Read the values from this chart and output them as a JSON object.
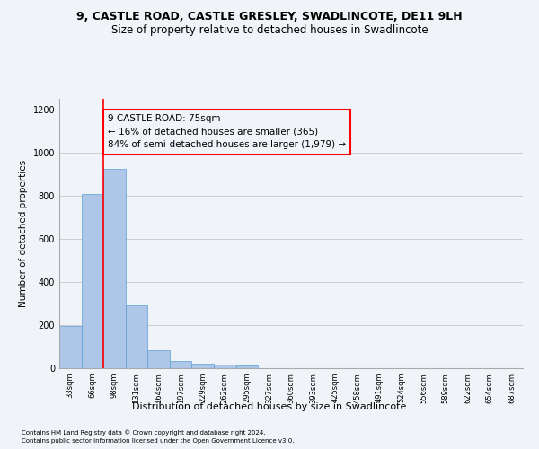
{
  "title": "9, CASTLE ROAD, CASTLE GRESLEY, SWADLINCOTE, DE11 9LH",
  "subtitle": "Size of property relative to detached houses in Swadlincote",
  "xlabel": "Distribution of detached houses by size in Swadlincote",
  "ylabel": "Number of detached properties",
  "footnote1": "Contains HM Land Registry data © Crown copyright and database right 2024.",
  "footnote2": "Contains public sector information licensed under the Open Government Licence v3.0.",
  "bin_labels": [
    "33sqm",
    "66sqm",
    "98sqm",
    "131sqm",
    "164sqm",
    "197sqm",
    "229sqm",
    "262sqm",
    "295sqm",
    "327sqm",
    "360sqm",
    "393sqm",
    "425sqm",
    "458sqm",
    "491sqm",
    "524sqm",
    "556sqm",
    "589sqm",
    "622sqm",
    "654sqm",
    "687sqm"
  ],
  "bar_values": [
    195,
    810,
    925,
    290,
    85,
    35,
    20,
    17,
    12,
    0,
    0,
    0,
    0,
    0,
    0,
    0,
    0,
    0,
    0,
    0,
    0
  ],
  "bar_color": "#aec6e8",
  "bar_edge_color": "#5a9fd4",
  "grid_color": "#cccccc",
  "annotation_box_text": "9 CASTLE ROAD: 75sqm\n← 16% of detached houses are smaller (365)\n84% of semi-detached houses are larger (1,979) →",
  "annotation_box_color": "#ff0000",
  "red_line_x": 1.5,
  "ylim": [
    0,
    1250
  ],
  "yticks": [
    0,
    200,
    400,
    600,
    800,
    1000,
    1200
  ],
  "bg_color": "#f0f4f8",
  "title_fontsize": 9,
  "subtitle_fontsize": 8.5,
  "annotation_fontsize": 7.5,
  "ylabel_fontsize": 7.5,
  "xlabel_fontsize": 8,
  "tick_fontsize": 6,
  "ytick_fontsize": 7,
  "footnote_fontsize": 5
}
